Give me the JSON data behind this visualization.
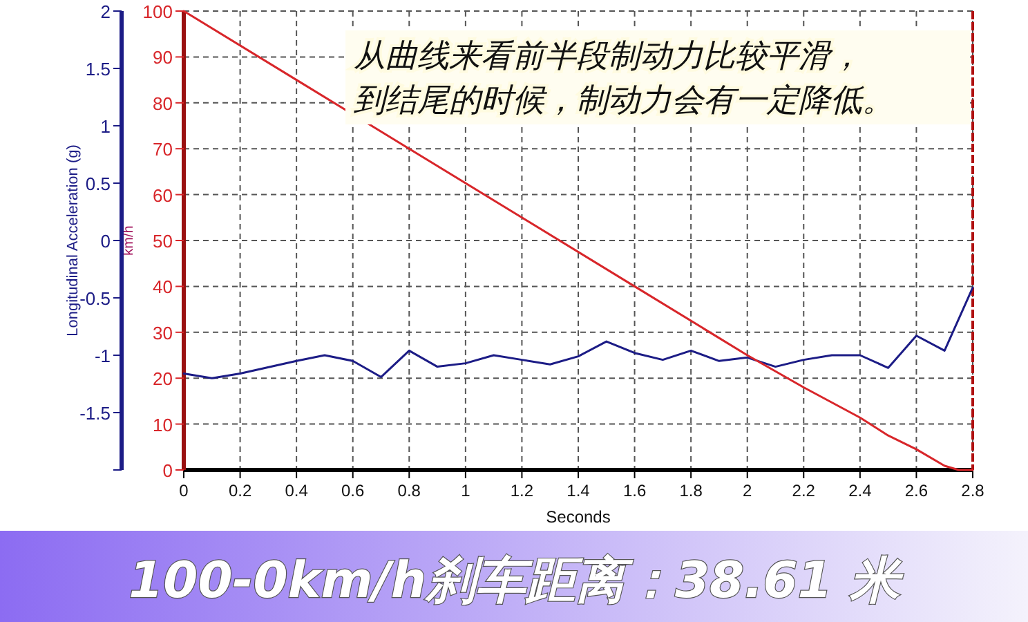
{
  "chart_data": {
    "type": "line",
    "title": "100-0km/h刹车距离：38.61 米",
    "annotations": [
      "从曲线来看前半段制动力比较平滑，",
      "到结尾的时候，制动力会有一定降低。"
    ],
    "xlabel": "Seconds",
    "ylabel": "Longitudinal Acceleration (g)",
    "y2label": "km/h",
    "xlim": [
      0,
      2.8
    ],
    "xticks": [
      0,
      0.2,
      0.4,
      0.6,
      0.8,
      1,
      1.2,
      1.4,
      1.6,
      1.8,
      2,
      2.2,
      2.4,
      2.6,
      2.8
    ],
    "ylim": [
      -2,
      2
    ],
    "yticks": [
      {
        "value": -2,
        "label": null
      },
      -1.5,
      -1,
      -0.5,
      0,
      0.5,
      1,
      1.5,
      2
    ],
    "y2lim": [
      0,
      100
    ],
    "y2ticks": [
      0,
      10,
      20,
      30,
      40,
      50,
      60,
      70,
      80,
      90,
      100
    ],
    "grid": true,
    "marker": "none",
    "line_style": "solid",
    "series": [
      {
        "color": "#1c1c86",
        "x": [
          0,
          0.1,
          0.2,
          0.4,
          0.5,
          0.6,
          0.7,
          0.8,
          0.9,
          1.0,
          1.1,
          1.2,
          1.3,
          1.4,
          1.5,
          1.6,
          1.7,
          1.8,
          1.9,
          2.0,
          2.1,
          2.2,
          2.3,
          2.4,
          2.5,
          2.6,
          2.7,
          2.8
        ],
        "values": [
          -1.16,
          -1.2,
          -1.16,
          -1.05,
          -1.0,
          -1.05,
          -1.19,
          -0.96,
          -1.1,
          -1.07,
          -1.0,
          -1.04,
          -1.08,
          -1.01,
          -0.88,
          -0.98,
          -1.04,
          -0.96,
          -1.05,
          -1.02,
          -1.1,
          -1.04,
          -1.0,
          -1.0,
          -1.11,
          -0.83,
          -0.96,
          -0.41
        ]
      },
      {
        "color": "#d8262a",
        "axis": "y2",
        "x": [
          0,
          0.4,
          0.8,
          1.2,
          1.6,
          2.0,
          2.2,
          2.4,
          2.5,
          2.6,
          2.7,
          2.75,
          2.8
        ],
        "values": [
          100,
          85,
          70,
          55,
          40,
          25,
          18,
          11.4,
          7.5,
          4.5,
          0.9,
          0,
          0
        ]
      }
    ]
  }
}
